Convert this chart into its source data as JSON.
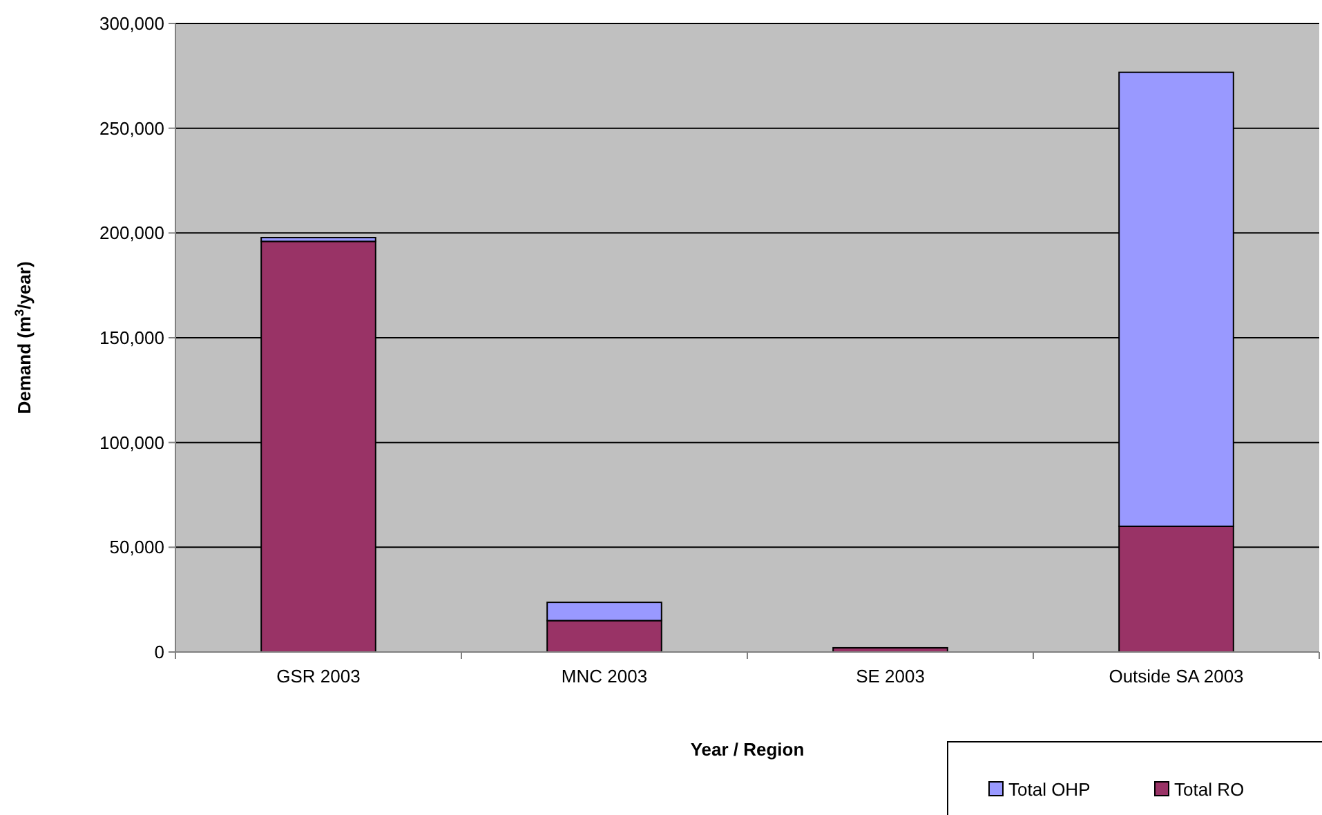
{
  "chart_data": {
    "type": "bar",
    "stacked": true,
    "xlabel": "Year / Region",
    "ylabel": "Demand (m$^{3}$/year)",
    "categories": [
      "GSR 2003",
      "MNC 2003",
      "SE 2003",
      "Outside SA 2003"
    ],
    "series": [
      {
        "name": "Total RO",
        "color": "#993366",
        "values": [
          196000,
          15000,
          2000,
          60000
        ]
      },
      {
        "name": "Total OHP",
        "color": "#9999ff",
        "values": [
          1800,
          8700,
          0,
          216700
        ]
      }
    ],
    "ylim": [
      0,
      300000
    ],
    "yticks": [
      {
        "value": 0,
        "label": "0"
      },
      {
        "value": 50000,
        "label": "50,000"
      },
      {
        "value": 100000,
        "label": "100,000"
      },
      {
        "value": 150000,
        "label": "150,000"
      },
      {
        "value": 200000,
        "label": "200,000"
      },
      {
        "value": 250000,
        "label": "250,000"
      },
      {
        "value": 300000,
        "label": "300,000"
      }
    ],
    "grid": "y",
    "legend": "bottom right"
  }
}
